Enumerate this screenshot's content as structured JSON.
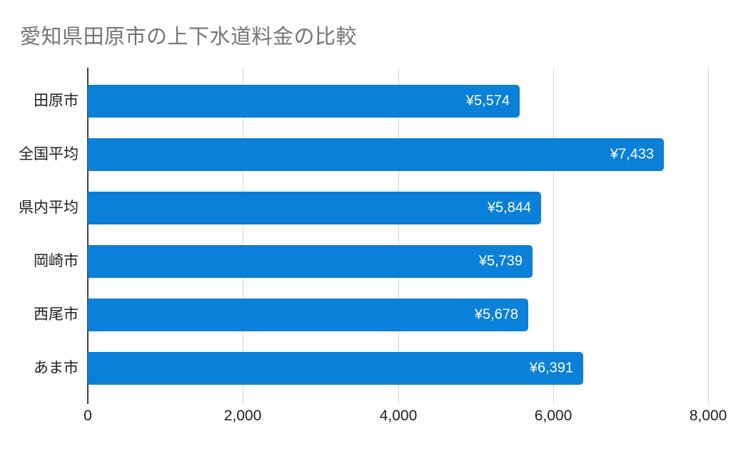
{
  "chart_data": {
    "type": "bar",
    "orientation": "horizontal",
    "title": "愛知県田原市の上下水道料金の比較",
    "categories": [
      "田原市",
      "全国平均",
      "県内平均",
      "岡崎市",
      "西尾市",
      "あま市"
    ],
    "values": [
      5574,
      7433,
      5844,
      5739,
      5678,
      6391
    ],
    "value_labels": [
      "¥5,574",
      "¥7,433",
      "¥5,844",
      "¥5,739",
      "¥5,678",
      "¥6,391"
    ],
    "xlabel": "",
    "ylabel": "",
    "xlim": [
      0,
      8000
    ],
    "x_ticks": [
      0,
      2000,
      4000,
      6000,
      8000
    ],
    "x_tick_labels": [
      "0",
      "2,000",
      "4,000",
      "6,000",
      "8,000"
    ],
    "grid": true,
    "legend": "none",
    "colors": {
      "bar": "#0b80d8",
      "title_text": "#757575",
      "label_text": "#1f1f1f",
      "value_text": "#ffffff",
      "gridline": "#d6d6d6",
      "axis_line": "#424242",
      "background": "#ffffff"
    }
  }
}
